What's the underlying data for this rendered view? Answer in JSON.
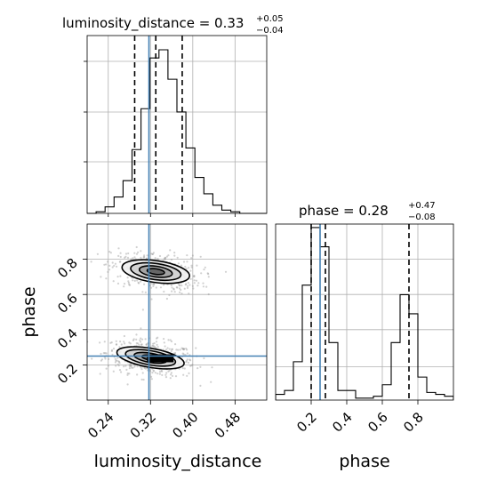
{
  "chart_data": {
    "type": "corner",
    "parameters": [
      "luminosity_distance",
      "phase"
    ],
    "truths": {
      "luminosity_distance": 0.317,
      "phase": 0.25
    },
    "luminosity_distance": {
      "title": "luminosity_distance = 0.33",
      "title_plus": "+0.05",
      "title_minus": "−0.04",
      "xlabel": "luminosity_distance",
      "xlim": [
        0.2,
        0.54
      ],
      "ticks": [
        0.24,
        0.32,
        0.4,
        0.48
      ],
      "tick_labels": [
        "0.24",
        "0.32",
        "0.40",
        "0.48"
      ],
      "quantiles": [
        0.29,
        0.33,
        0.38
      ],
      "hist_edges": [
        0.2,
        0.217,
        0.234,
        0.251,
        0.268,
        0.285,
        0.302,
        0.319,
        0.336,
        0.353,
        0.37,
        0.387,
        0.404,
        0.421,
        0.438,
        0.455,
        0.472,
        0.489,
        0.506,
        0.523,
        0.54
      ],
      "hist_counts": [
        0,
        1,
        4,
        10,
        20,
        39,
        64,
        95,
        100,
        82,
        62,
        40,
        22,
        12,
        5,
        2,
        1,
        0,
        0,
        0
      ]
    },
    "phase": {
      "title": "phase = 0.28",
      "title_plus": "+0.47",
      "title_minus": "−0.08",
      "xlabel": "phase",
      "ylabel": "phase",
      "lim": [
        0.0,
        1.0
      ],
      "xticks": [
        0.2,
        0.4,
        0.6,
        0.8
      ],
      "xtick_labels": [
        "0.2",
        "0.4",
        "0.6",
        "0.8"
      ],
      "yticks": [
        0.2,
        0.4,
        0.6,
        0.8
      ],
      "ytick_labels": [
        "0.2",
        "0.4",
        "0.6",
        "0.8"
      ],
      "quantiles": [
        0.2,
        0.28,
        0.75
      ],
      "hist_edges": [
        0.0,
        0.05,
        0.1,
        0.15,
        0.2,
        0.25,
        0.3,
        0.35,
        0.4,
        0.45,
        0.5,
        0.55,
        0.6,
        0.65,
        0.7,
        0.75,
        0.8,
        0.85,
        0.9,
        0.95,
        1.0
      ],
      "hist_counts": [
        3,
        5,
        20,
        60,
        90,
        80,
        30,
        5,
        5,
        1,
        1,
        2,
        8,
        30,
        55,
        45,
        12,
        4,
        3,
        2
      ]
    },
    "density_2d": {
      "x": "luminosity_distance",
      "y": "phase",
      "modes": [
        {
          "center": [
            0.32,
            0.24
          ],
          "sigma": [
            0.03,
            0.035
          ]
        },
        {
          "center": [
            0.33,
            0.73
          ],
          "sigma": [
            0.03,
            0.04
          ]
        }
      ],
      "contour_levels": 4,
      "scatter": "gray samples"
    },
    "grid": true
  }
}
